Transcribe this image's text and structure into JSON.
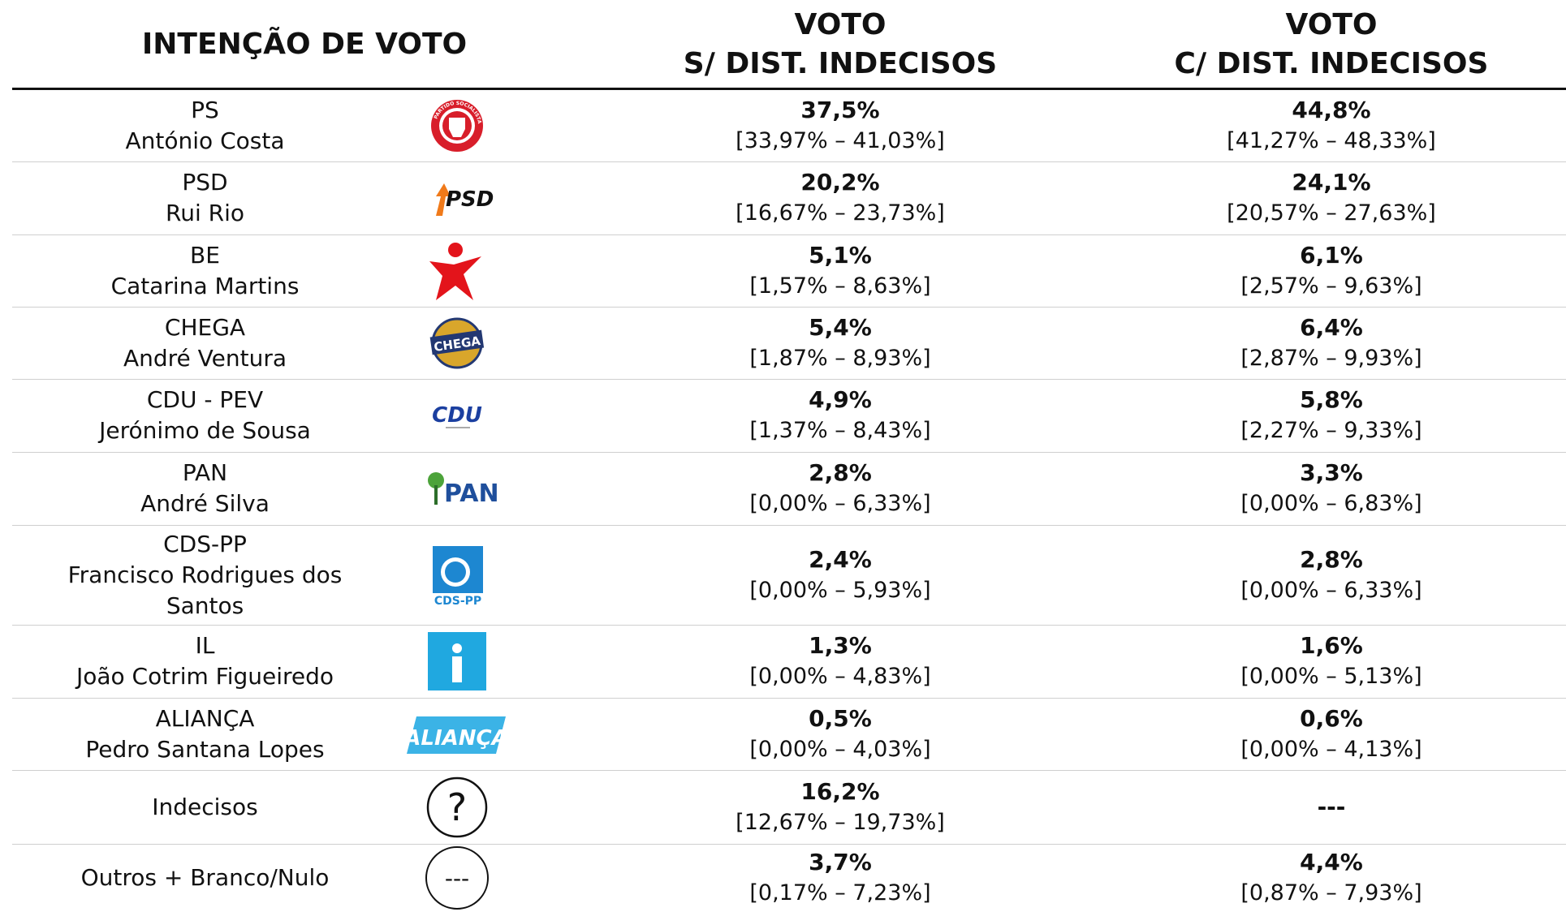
{
  "header": {
    "title": "INTENÇÃO DE VOTO",
    "col1": [
      "VOTO",
      "S/ DIST. INDECISOS"
    ],
    "col2": [
      "VOTO",
      "C/ DIST. INDECISOS"
    ]
  },
  "rows": [
    {
      "party": "PS",
      "leader": "António Costa",
      "logo": "PARTIDO SOCIALISTA",
      "s": {
        "value": "37,5%",
        "interval": "[33,97% – 41,03%]"
      },
      "c": {
        "value": "44,8%",
        "interval": "[41,27% – 48,33%]"
      }
    },
    {
      "party": "PSD",
      "leader": "Rui Rio",
      "logo": "PSD",
      "s": {
        "value": "20,2%",
        "interval": "[16,67% – 23,73%]"
      },
      "c": {
        "value": "24,1%",
        "interval": "[20,57% – 27,63%]"
      }
    },
    {
      "party": "BE",
      "leader": "Catarina Martins",
      "s": {
        "value": "5,1%",
        "interval": "[1,57% – 8,63%]"
      },
      "c": {
        "value": "6,1%",
        "interval": "[2,57% – 9,63%]"
      }
    },
    {
      "party": "CHEGA",
      "leader": "André Ventura",
      "logo": "CHEGA",
      "s": {
        "value": "5,4%",
        "interval": "[1,87% – 8,93%]"
      },
      "c": {
        "value": "6,4%",
        "interval": "[2,87% – 9,93%]"
      }
    },
    {
      "party": "CDU - PEV",
      "leader": "Jerónimo de Sousa",
      "logo": "CDU",
      "s": {
        "value": "4,9%",
        "interval": "[1,37% – 8,43%]"
      },
      "c": {
        "value": "5,8%",
        "interval": "[2,27% – 9,33%]"
      }
    },
    {
      "party": "PAN",
      "leader": "André Silva",
      "logo": "PAN",
      "s": {
        "value": "2,8%",
        "interval": "[0,00% – 6,33%]"
      },
      "c": {
        "value": "3,3%",
        "interval": "[0,00% – 6,83%]"
      }
    },
    {
      "party": "CDS-PP",
      "leader": "Francisco Rodrigues dos Santos",
      "logo": "CDS-PP",
      "s": {
        "value": "2,4%",
        "interval": "[0,00% – 5,93%]"
      },
      "c": {
        "value": "2,8%",
        "interval": "[0,00% – 6,33%]"
      }
    },
    {
      "party": "IL",
      "leader": "João Cotrim Figueiredo",
      "s": {
        "value": "1,3%",
        "interval": "[0,00% – 4,83%]"
      },
      "c": {
        "value": "1,6%",
        "interval": "[0,00% – 5,13%]"
      }
    },
    {
      "party": "ALIANÇA",
      "leader": "Pedro Santana Lopes",
      "logo": "ALIANÇA",
      "s": {
        "value": "0,5%",
        "interval": "[0,00% – 4,03%]"
      },
      "c": {
        "value": "0,6%",
        "interval": "[0,00% – 4,13%]"
      }
    },
    {
      "party": "Indecisos",
      "logo": "?",
      "s": {
        "value": "16,2%",
        "interval": "[12,67% – 19,73%]"
      },
      "c": {
        "value": "---"
      }
    },
    {
      "party": "Outros + Branco/Nulo",
      "logo": "---",
      "s": {
        "value": "3,7%",
        "interval": "[0,17% – 7,23%]"
      },
      "c": {
        "value": "4,4%",
        "interval": "[0,87% – 7,93%]"
      }
    }
  ]
}
